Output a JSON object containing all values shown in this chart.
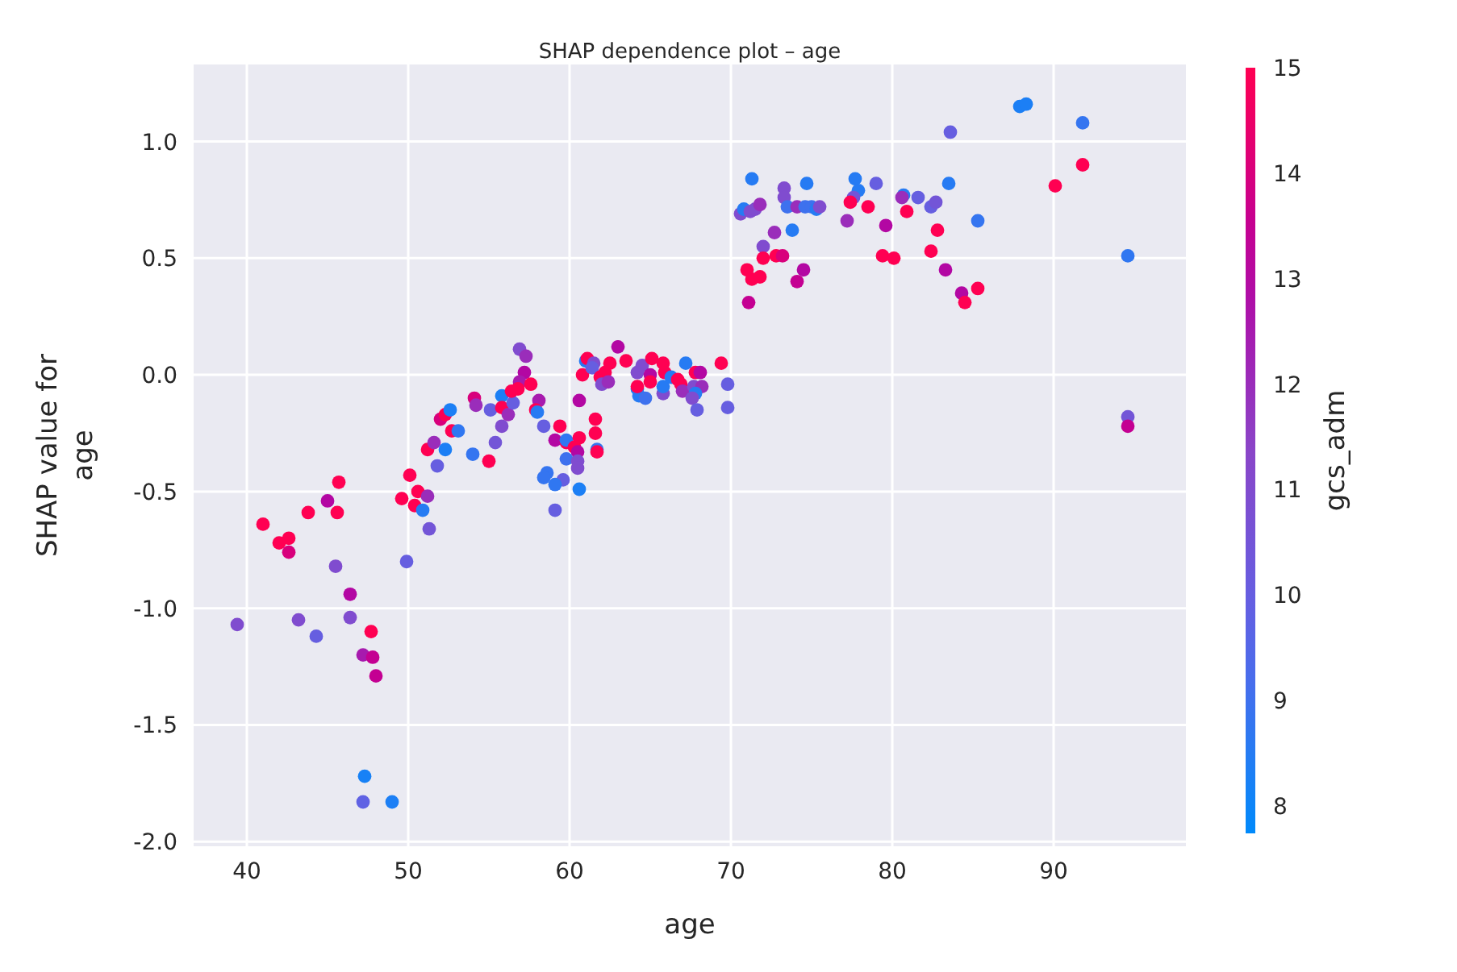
{
  "chart_data": {
    "type": "scatter",
    "title": "SHAP dependence plot – age",
    "xlabel": "age",
    "ylabel": "SHAP value for\nage",
    "clabel": "gcs_adm",
    "xlim": [
      36.7,
      98.2
    ],
    "ylim": [
      -2.02,
      1.33
    ],
    "xticks": [
      40,
      50,
      60,
      70,
      80,
      90
    ],
    "yticks": [
      {
        "value": -2,
        "label": "-2.0"
      },
      -1.5,
      {
        "value": -1,
        "label": "-1.0"
      },
      -0.5,
      {
        "value": 0,
        "label": "0.0"
      },
      0.5,
      {
        "value": 1,
        "label": "1.0"
      }
    ],
    "clim": [
      7.74,
      15
    ],
    "cticks": [
      8,
      9,
      10,
      11,
      12,
      13,
      14,
      15
    ],
    "grid": true,
    "marker": "circle",
    "x": [
      39.4,
      41.0,
      42.0,
      42.6,
      42.6,
      43.2,
      43.8,
      44.3,
      45.0,
      45.7,
      45.6,
      45.5,
      46.4,
      46.4,
      47.7,
      47.2,
      47.8,
      48.0,
      47.3,
      47.2,
      49.0,
      49.9,
      49.6,
      50.1,
      50.6,
      50.4,
      51.2,
      50.9,
      51.3,
      51.2,
      51.6,
      51.8,
      52.3,
      52.0,
      52.3,
      52.6,
      52.7,
      53.1,
      54.0,
      54.1,
      54.2,
      55.0,
      55.1,
      55.8,
      55.8,
      55.4,
      55.8,
      56.2,
      56.5,
      56.9,
      57.3,
      57.2,
      56.9,
      57.6,
      56.8,
      56.4,
      58.1,
      57.9,
      58.0,
      58.4,
      59.4,
      59.1,
      59.8,
      59.8,
      60.6,
      60.3,
      60.5,
      59.8,
      60.5,
      60.5,
      58.6,
      58.4,
      59.6,
      59.1,
      60.6,
      59.1,
      60.6,
      61.6,
      61.6,
      61.7,
      61.7,
      60.8,
      61.0,
      61.1,
      61.5,
      61.4,
      61.9,
      62.2,
      62.0,
      62.4,
      62.5,
      63.0,
      63.5,
      64.2,
      64.2,
      64.3,
      64.7,
      64.2,
      64.5,
      65.1,
      65.0,
      65.0,
      65.8,
      65.9,
      65.8,
      65.8,
      66.3,
      66.7,
      66.9,
      67.2,
      67.0,
      67.8,
      68.1,
      67.7,
      68.2,
      67.8,
      67.6,
      67.9,
      71.1,
      69.4,
      69.8,
      69.8,
      71.3,
      70.6,
      70.8,
      71.2,
      71.5,
      71.8,
      73.3,
      73.3,
      74.7,
      73.5,
      74.1,
      74.6,
      75.0,
      75.3,
      75.5,
      72.7,
      72.0,
      72.0,
      72.8,
      73.2,
      73.8,
      71.0,
      71.3,
      71.8,
      74.5,
      74.1,
      77.7,
      77.9,
      77.6,
      77.4,
      77.2,
      78.5,
      79.0,
      79.6,
      79.4,
      80.1,
      80.7,
      80.6,
      80.9,
      81.6,
      82.4,
      82.7,
      82.8,
      82.4,
      83.3,
      83.5,
      83.6,
      84.3,
      84.5,
      85.3,
      85.3,
      87.9,
      88.3,
      91.8,
      91.8,
      90.1,
      94.6,
      94.6,
      94.6
    ],
    "values": [
      -1.07,
      -0.64,
      -0.72,
      -0.7,
      -0.76,
      -1.05,
      -0.59,
      -1.12,
      -0.54,
      -0.46,
      -0.59,
      -0.82,
      -0.94,
      -1.04,
      -1.1,
      -1.2,
      -1.21,
      -1.29,
      -1.72,
      -1.83,
      -1.83,
      -0.8,
      -0.53,
      -0.43,
      -0.5,
      -0.56,
      -0.52,
      -0.58,
      -0.66,
      -0.32,
      -0.29,
      -0.39,
      -0.32,
      -0.19,
      -0.17,
      -0.15,
      -0.24,
      -0.24,
      -0.34,
      -0.1,
      -0.13,
      -0.37,
      -0.15,
      -0.09,
      -0.14,
      -0.29,
      -0.22,
      -0.17,
      -0.12,
      0.11,
      0.08,
      0.01,
      -0.03,
      -0.04,
      -0.06,
      -0.07,
      -0.11,
      -0.15,
      -0.16,
      -0.22,
      -0.22,
      -0.28,
      -0.29,
      -0.28,
      -0.27,
      -0.31,
      -0.33,
      -0.36,
      -0.37,
      -0.4,
      -0.42,
      -0.44,
      -0.45,
      -0.47,
      -0.49,
      -0.58,
      -0.11,
      -0.19,
      -0.25,
      -0.32,
      -0.33,
      0.0,
      0.06,
      0.07,
      0.05,
      0.03,
      -0.01,
      0.01,
      -0.04,
      -0.03,
      0.05,
      0.12,
      0.06,
      0.01,
      -0.06,
      -0.09,
      -0.1,
      -0.05,
      0.04,
      0.07,
      0.0,
      -0.03,
      0.05,
      0.01,
      -0.08,
      -0.05,
      -0.01,
      -0.02,
      -0.04,
      0.05,
      -0.07,
      0.01,
      0.01,
      -0.05,
      -0.05,
      -0.08,
      -0.1,
      -0.15,
      0.31,
      0.05,
      -0.04,
      -0.14,
      0.84,
      0.69,
      0.71,
      0.7,
      0.71,
      0.73,
      0.8,
      0.76,
      0.82,
      0.72,
      0.72,
      0.72,
      0.72,
      0.71,
      0.72,
      0.61,
      0.55,
      0.5,
      0.51,
      0.51,
      0.62,
      0.45,
      0.41,
      0.42,
      0.45,
      0.4,
      0.84,
      0.79,
      0.76,
      0.74,
      0.66,
      0.72,
      0.82,
      0.64,
      0.51,
      0.5,
      0.77,
      0.76,
      0.7,
      0.76,
      0.72,
      0.74,
      0.62,
      0.53,
      0.45,
      0.82,
      1.04,
      0.35,
      0.31,
      0.37,
      0.66,
      1.15,
      1.16,
      1.08,
      0.9,
      0.81,
      0.51,
      -0.18,
      -0.22
    ],
    "cvalues": [
      11,
      15,
      15,
      15,
      14,
      11,
      15,
      10,
      13,
      15,
      15,
      11,
      13,
      11,
      15,
      12.5,
      13.5,
      13.5,
      8.2,
      9.8,
      8.3,
      10,
      15,
      15,
      15,
      15,
      12,
      8.5,
      10.5,
      15,
      12,
      10,
      8.3,
      14,
      15,
      8.3,
      15,
      8.7,
      8.8,
      14,
      12,
      15,
      10,
      8.3,
      15,
      10.5,
      11,
      12,
      10,
      11,
      12,
      13,
      12.5,
      15,
      15,
      15,
      12.5,
      15,
      8.5,
      10,
      15,
      13,
      15,
      8.7,
      15,
      15,
      13,
      9,
      11,
      11,
      8.8,
      8.8,
      10,
      8.7,
      8.3,
      10,
      13,
      15,
      15,
      8.8,
      15,
      15,
      8.5,
      15,
      11,
      10,
      15,
      15,
      11,
      12,
      15,
      13,
      15,
      11,
      8.3,
      8.5,
      9,
      15,
      11,
      15,
      13,
      15,
      15,
      15,
      11,
      8.5,
      8.5,
      15,
      15,
      8.5,
      12,
      15,
      13,
      11,
      12,
      8.5,
      11,
      10,
      13.5,
      15,
      10,
      10,
      8.5,
      11,
      8.5,
      11,
      11,
      12,
      11,
      11,
      8.5,
      9,
      12,
      9,
      9,
      8.5,
      11,
      12,
      11,
      15,
      15,
      14,
      8.5,
      15,
      15,
      15,
      13,
      13.5,
      8.5,
      8.5,
      10.5,
      15,
      12,
      15,
      10,
      13,
      15,
      15,
      8.5,
      12,
      15,
      10,
      10,
      10.5,
      15,
      15,
      13,
      8.5,
      10,
      13,
      15,
      15,
      8.8,
      8.3,
      8.3,
      8.8,
      15,
      15,
      8.7,
      10.5,
      13.5
    ]
  }
}
